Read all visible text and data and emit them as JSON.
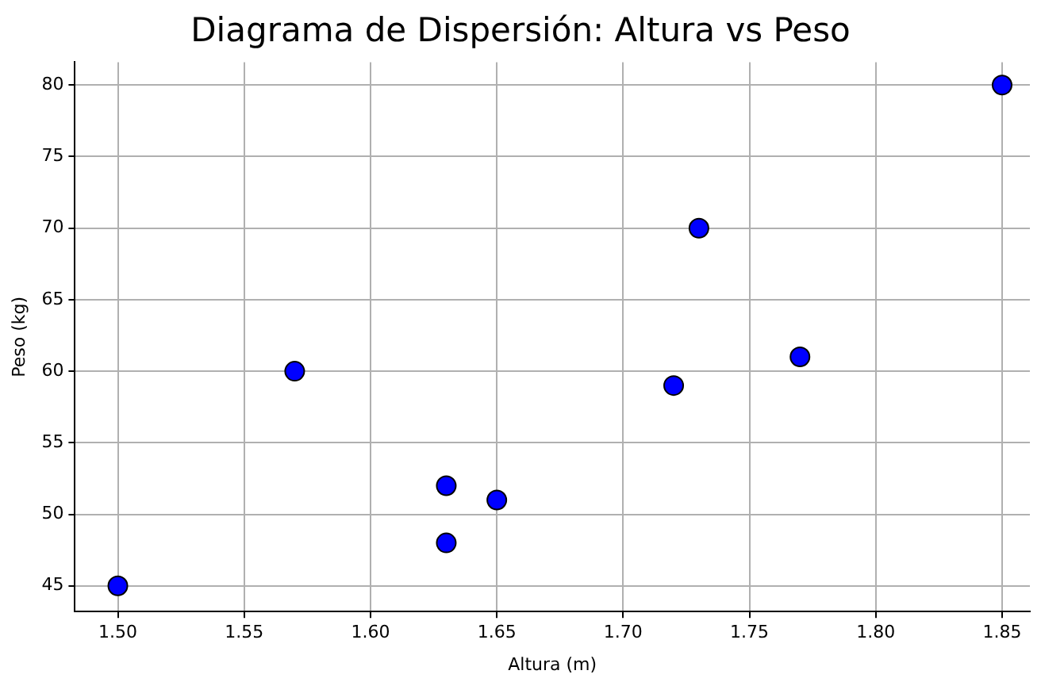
{
  "chart_data": {
    "type": "scatter",
    "title": "Diagrama de Dispersión: Altura vs Peso",
    "xlabel": "Altura (m)",
    "ylabel": "Peso (kg)",
    "x": [
      1.5,
      1.57,
      1.63,
      1.63,
      1.65,
      1.72,
      1.73,
      1.77,
      1.85
    ],
    "series": [
      {
        "color": "#0000ff",
        "values": [
          45,
          60,
          52,
          48,
          51,
          59,
          70,
          61,
          80
        ]
      }
    ],
    "xlim": [
      1.483,
      1.861
    ],
    "xticks": [
      {
        "value": 1.5,
        "label": "1.50"
      },
      {
        "value": 1.55,
        "label": "1.55"
      },
      {
        "value": 1.6,
        "label": "1.60"
      },
      {
        "value": 1.65,
        "label": "1.65"
      },
      {
        "value": 1.7,
        "label": "1.70"
      },
      {
        "value": 1.75,
        "label": "1.75"
      },
      {
        "value": 1.8,
        "label": "1.80"
      },
      {
        "value": 1.85,
        "label": "1.85"
      }
    ],
    "ylim": [
      43.2,
      81.6
    ],
    "yticks": [
      45,
      50,
      55,
      60,
      65,
      70,
      75,
      80
    ],
    "grid": true,
    "marker": "circle"
  }
}
